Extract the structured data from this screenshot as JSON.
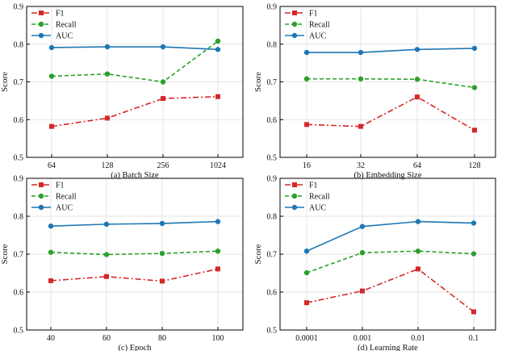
{
  "colors": {
    "F1": "#d62728",
    "Recall": "#2ca02c",
    "AUC": "#1f77b4",
    "grid": "#dddddd",
    "axis": "#000000"
  },
  "chart_data": [
    {
      "type": "line",
      "title": "(a) Batch Size",
      "xlabel": "(a) Batch Size",
      "ylabel": "Score",
      "ylim": [
        0.5,
        0.9
      ],
      "yticks": [
        "0.5",
        "0.6",
        "0.7",
        "0.8",
        "0.9"
      ],
      "categories": [
        "64",
        "128",
        "256",
        "1024"
      ],
      "grid": true,
      "legend": "top-left",
      "series": [
        {
          "name": "F1",
          "values": [
            0.582,
            0.604,
            0.656,
            0.661
          ]
        },
        {
          "name": "Recall",
          "values": [
            0.715,
            0.721,
            0.7,
            0.808
          ]
        },
        {
          "name": "AUC",
          "values": [
            0.791,
            0.793,
            0.793,
            0.786
          ]
        }
      ]
    },
    {
      "type": "line",
      "title": "(b) Embedding Size",
      "xlabel": "(b) Embedding Size",
      "ylabel": "Score",
      "ylim": [
        0.5,
        0.9
      ],
      "yticks": [
        "0.5",
        "0.6",
        "0.7",
        "0.8",
        "0.9"
      ],
      "categories": [
        "16",
        "32",
        "64",
        "128"
      ],
      "grid": true,
      "legend": "top-left",
      "series": [
        {
          "name": "F1",
          "values": [
            0.587,
            0.582,
            0.66,
            0.572
          ]
        },
        {
          "name": "Recall",
          "values": [
            0.708,
            0.708,
            0.707,
            0.685
          ]
        },
        {
          "name": "AUC",
          "values": [
            0.778,
            0.778,
            0.786,
            0.789
          ]
        }
      ]
    },
    {
      "type": "line",
      "title": "(c) Epoch",
      "xlabel": "(c) Epoch",
      "ylabel": "Score",
      "ylim": [
        0.5,
        0.9
      ],
      "yticks": [
        "0.5",
        "0.6",
        "0.7",
        "0.8",
        "0.9"
      ],
      "categories": [
        "40",
        "60",
        "80",
        "100"
      ],
      "grid": true,
      "legend": "top-left",
      "series": [
        {
          "name": "F1",
          "values": [
            0.63,
            0.641,
            0.629,
            0.661
          ]
        },
        {
          "name": "Recall",
          "values": [
            0.705,
            0.699,
            0.702,
            0.708
          ]
        },
        {
          "name": "AUC",
          "values": [
            0.774,
            0.779,
            0.781,
            0.786
          ]
        }
      ]
    },
    {
      "type": "line",
      "title": "(d) Learning Rate",
      "xlabel": "(d) Learning Rate",
      "ylabel": "Score",
      "ylim": [
        0.5,
        0.9
      ],
      "yticks": [
        "0.5",
        "0.6",
        "0.7",
        "0.8",
        "0.9"
      ],
      "categories": [
        "0.0001",
        "0.001",
        "0.01",
        "0.1"
      ],
      "grid": true,
      "legend": "top-left",
      "series": [
        {
          "name": "F1",
          "values": [
            0.572,
            0.603,
            0.661,
            0.548
          ]
        },
        {
          "name": "Recall",
          "values": [
            0.651,
            0.704,
            0.708,
            0.701
          ]
        },
        {
          "name": "AUC",
          "values": [
            0.708,
            0.773,
            0.786,
            0.782
          ]
        }
      ]
    }
  ]
}
